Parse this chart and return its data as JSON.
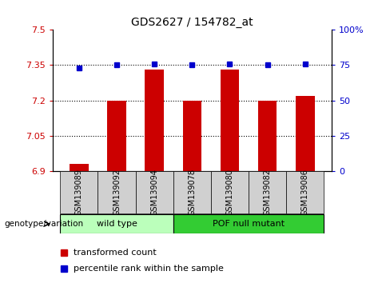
{
  "title": "GDS2627 / 154782_at",
  "samples": [
    "GSM139089",
    "GSM139092",
    "GSM139094",
    "GSM139078",
    "GSM139080",
    "GSM139082",
    "GSM139086"
  ],
  "red_values": [
    6.93,
    7.2,
    7.33,
    7.2,
    7.33,
    7.2,
    7.22
  ],
  "blue_values": [
    73,
    75,
    76,
    75,
    76,
    75,
    76
  ],
  "ylim_left": [
    6.9,
    7.5
  ],
  "ylim_right": [
    0,
    100
  ],
  "yticks_left": [
    6.9,
    7.05,
    7.2,
    7.35,
    7.5
  ],
  "yticks_right": [
    0,
    25,
    50,
    75,
    100
  ],
  "ytick_labels_left": [
    "6.9",
    "7.05",
    "7.2",
    "7.35",
    "7.5"
  ],
  "ytick_labels_right": [
    "0",
    "25",
    "50",
    "75",
    "100%"
  ],
  "hlines": [
    7.05,
    7.2,
    7.35
  ],
  "group1_label": "wild type",
  "group2_label": "POF null mutant",
  "group1_indices": [
    0,
    1,
    2
  ],
  "group2_indices": [
    3,
    4,
    5,
    6
  ],
  "genotype_label": "genotype/variation",
  "legend_red": "transformed count",
  "legend_blue": "percentile rank within the sample",
  "bar_color": "#cc0000",
  "dot_color": "#0000cc",
  "group1_bg": "#bbffbb",
  "group2_bg": "#33cc33",
  "sample_bg": "#d0d0d0",
  "bar_bottom": 6.9,
  "bar_width": 0.5
}
